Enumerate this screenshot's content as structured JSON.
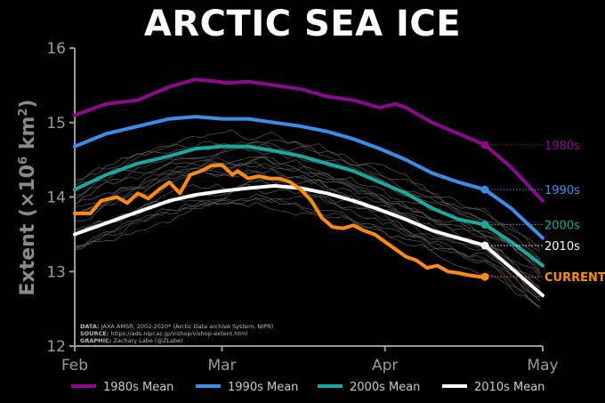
{
  "chart_data": {
    "type": "line",
    "title": "ARCTIC SEA ICE",
    "ylabel": "Extent (×10⁶ km²)",
    "ylabel_parts": {
      "a": "Extent (×10",
      "b": "6",
      "c": " km",
      "d": "2",
      "e": ")"
    },
    "xlim": [
      32,
      121
    ],
    "ylim": [
      12,
      16
    ],
    "yticks": [
      "12",
      "13",
      "14",
      "15",
      "16"
    ],
    "xticks": [
      {
        "label": "Feb",
        "day": 32
      },
      {
        "label": "Mar",
        "day": 60
      },
      {
        "label": "Apr",
        "day": 91
      },
      {
        "label": "May",
        "day": 121
      }
    ],
    "grid": false,
    "legend_position": "bottom",
    "credits": {
      "data_label": "DATA:",
      "data_text": " JAXA AMSR, 2002-2020* (Arctic Data archive System, NIPR)",
      "source_label": "SOURCE:",
      "source_text": " https://ads.nipr.ac.jp/vishop/vishop-extent.html",
      "graphic_label": "GRAPHIC:",
      "graphic_text": " Zachary Labe (@ZLabe)"
    },
    "series": [
      {
        "name": "1980s Mean",
        "end_label": "1980s",
        "color": "#8b0a8b",
        "endday": 110,
        "x": [
          32,
          38,
          44,
          50,
          55,
          59,
          61,
          65,
          70,
          75,
          80,
          85,
          90,
          93,
          95,
          100,
          105,
          110,
          115,
          121
        ],
        "y": [
          15.1,
          15.25,
          15.3,
          15.48,
          15.58,
          15.55,
          15.53,
          15.55,
          15.5,
          15.45,
          15.35,
          15.3,
          15.2,
          15.25,
          15.2,
          15.0,
          14.85,
          14.7,
          14.4,
          13.95
        ]
      },
      {
        "name": "1990s Mean",
        "end_label": "1990s",
        "color": "#3a8ee8",
        "endday": 110,
        "x": [
          32,
          38,
          44,
          50,
          55,
          60,
          65,
          70,
          75,
          80,
          85,
          90,
          95,
          100,
          105,
          110,
          115,
          121
        ],
        "y": [
          14.68,
          14.85,
          14.95,
          15.05,
          15.08,
          15.05,
          15.05,
          15.0,
          14.95,
          14.88,
          14.78,
          14.65,
          14.5,
          14.32,
          14.2,
          14.1,
          13.85,
          13.45
        ]
      },
      {
        "name": "2000s Mean",
        "end_label": "2000s",
        "color": "#1aa8a0",
        "endday": 110,
        "x": [
          32,
          38,
          44,
          50,
          55,
          60,
          65,
          70,
          75,
          80,
          85,
          90,
          95,
          100,
          105,
          110,
          115,
          121
        ],
        "y": [
          14.1,
          14.3,
          14.45,
          14.55,
          14.65,
          14.68,
          14.68,
          14.62,
          14.55,
          14.45,
          14.35,
          14.2,
          14.05,
          13.85,
          13.7,
          13.63,
          13.4,
          13.08
        ]
      },
      {
        "name": "2010s Mean",
        "end_label": "2010s",
        "color": "#ffffff",
        "endday": 110,
        "x": [
          32,
          38,
          44,
          50,
          55,
          60,
          65,
          70,
          75,
          80,
          85,
          90,
          95,
          100,
          105,
          110,
          115,
          121
        ],
        "y": [
          13.5,
          13.65,
          13.8,
          13.95,
          14.03,
          14.08,
          14.12,
          14.15,
          14.12,
          14.05,
          13.95,
          13.83,
          13.7,
          13.55,
          13.45,
          13.35,
          13.05,
          12.68
        ]
      },
      {
        "name": "CURRENT",
        "end_label": "CURRENT",
        "color": "#ff8c12",
        "endday": 110,
        "in_legend": false,
        "x": [
          32,
          35,
          37,
          40,
          42,
          44,
          46,
          48,
          50,
          52,
          54,
          56,
          58,
          60,
          62,
          63,
          65,
          67,
          69,
          71,
          73,
          75,
          77,
          79,
          81,
          83,
          85,
          87,
          89,
          91,
          93,
          95,
          97,
          99,
          101,
          103,
          105,
          107,
          109,
          110
        ],
        "y": [
          13.78,
          13.78,
          13.95,
          14.0,
          13.92,
          14.05,
          13.98,
          14.1,
          14.2,
          14.05,
          14.3,
          14.35,
          14.42,
          14.43,
          14.3,
          14.35,
          14.25,
          14.28,
          14.25,
          14.25,
          14.2,
          14.1,
          13.95,
          13.72,
          13.6,
          13.58,
          13.62,
          13.55,
          13.5,
          13.4,
          13.3,
          13.2,
          13.15,
          13.05,
          13.08,
          13.0,
          12.98,
          12.95,
          12.93,
          12.93
        ]
      }
    ]
  }
}
